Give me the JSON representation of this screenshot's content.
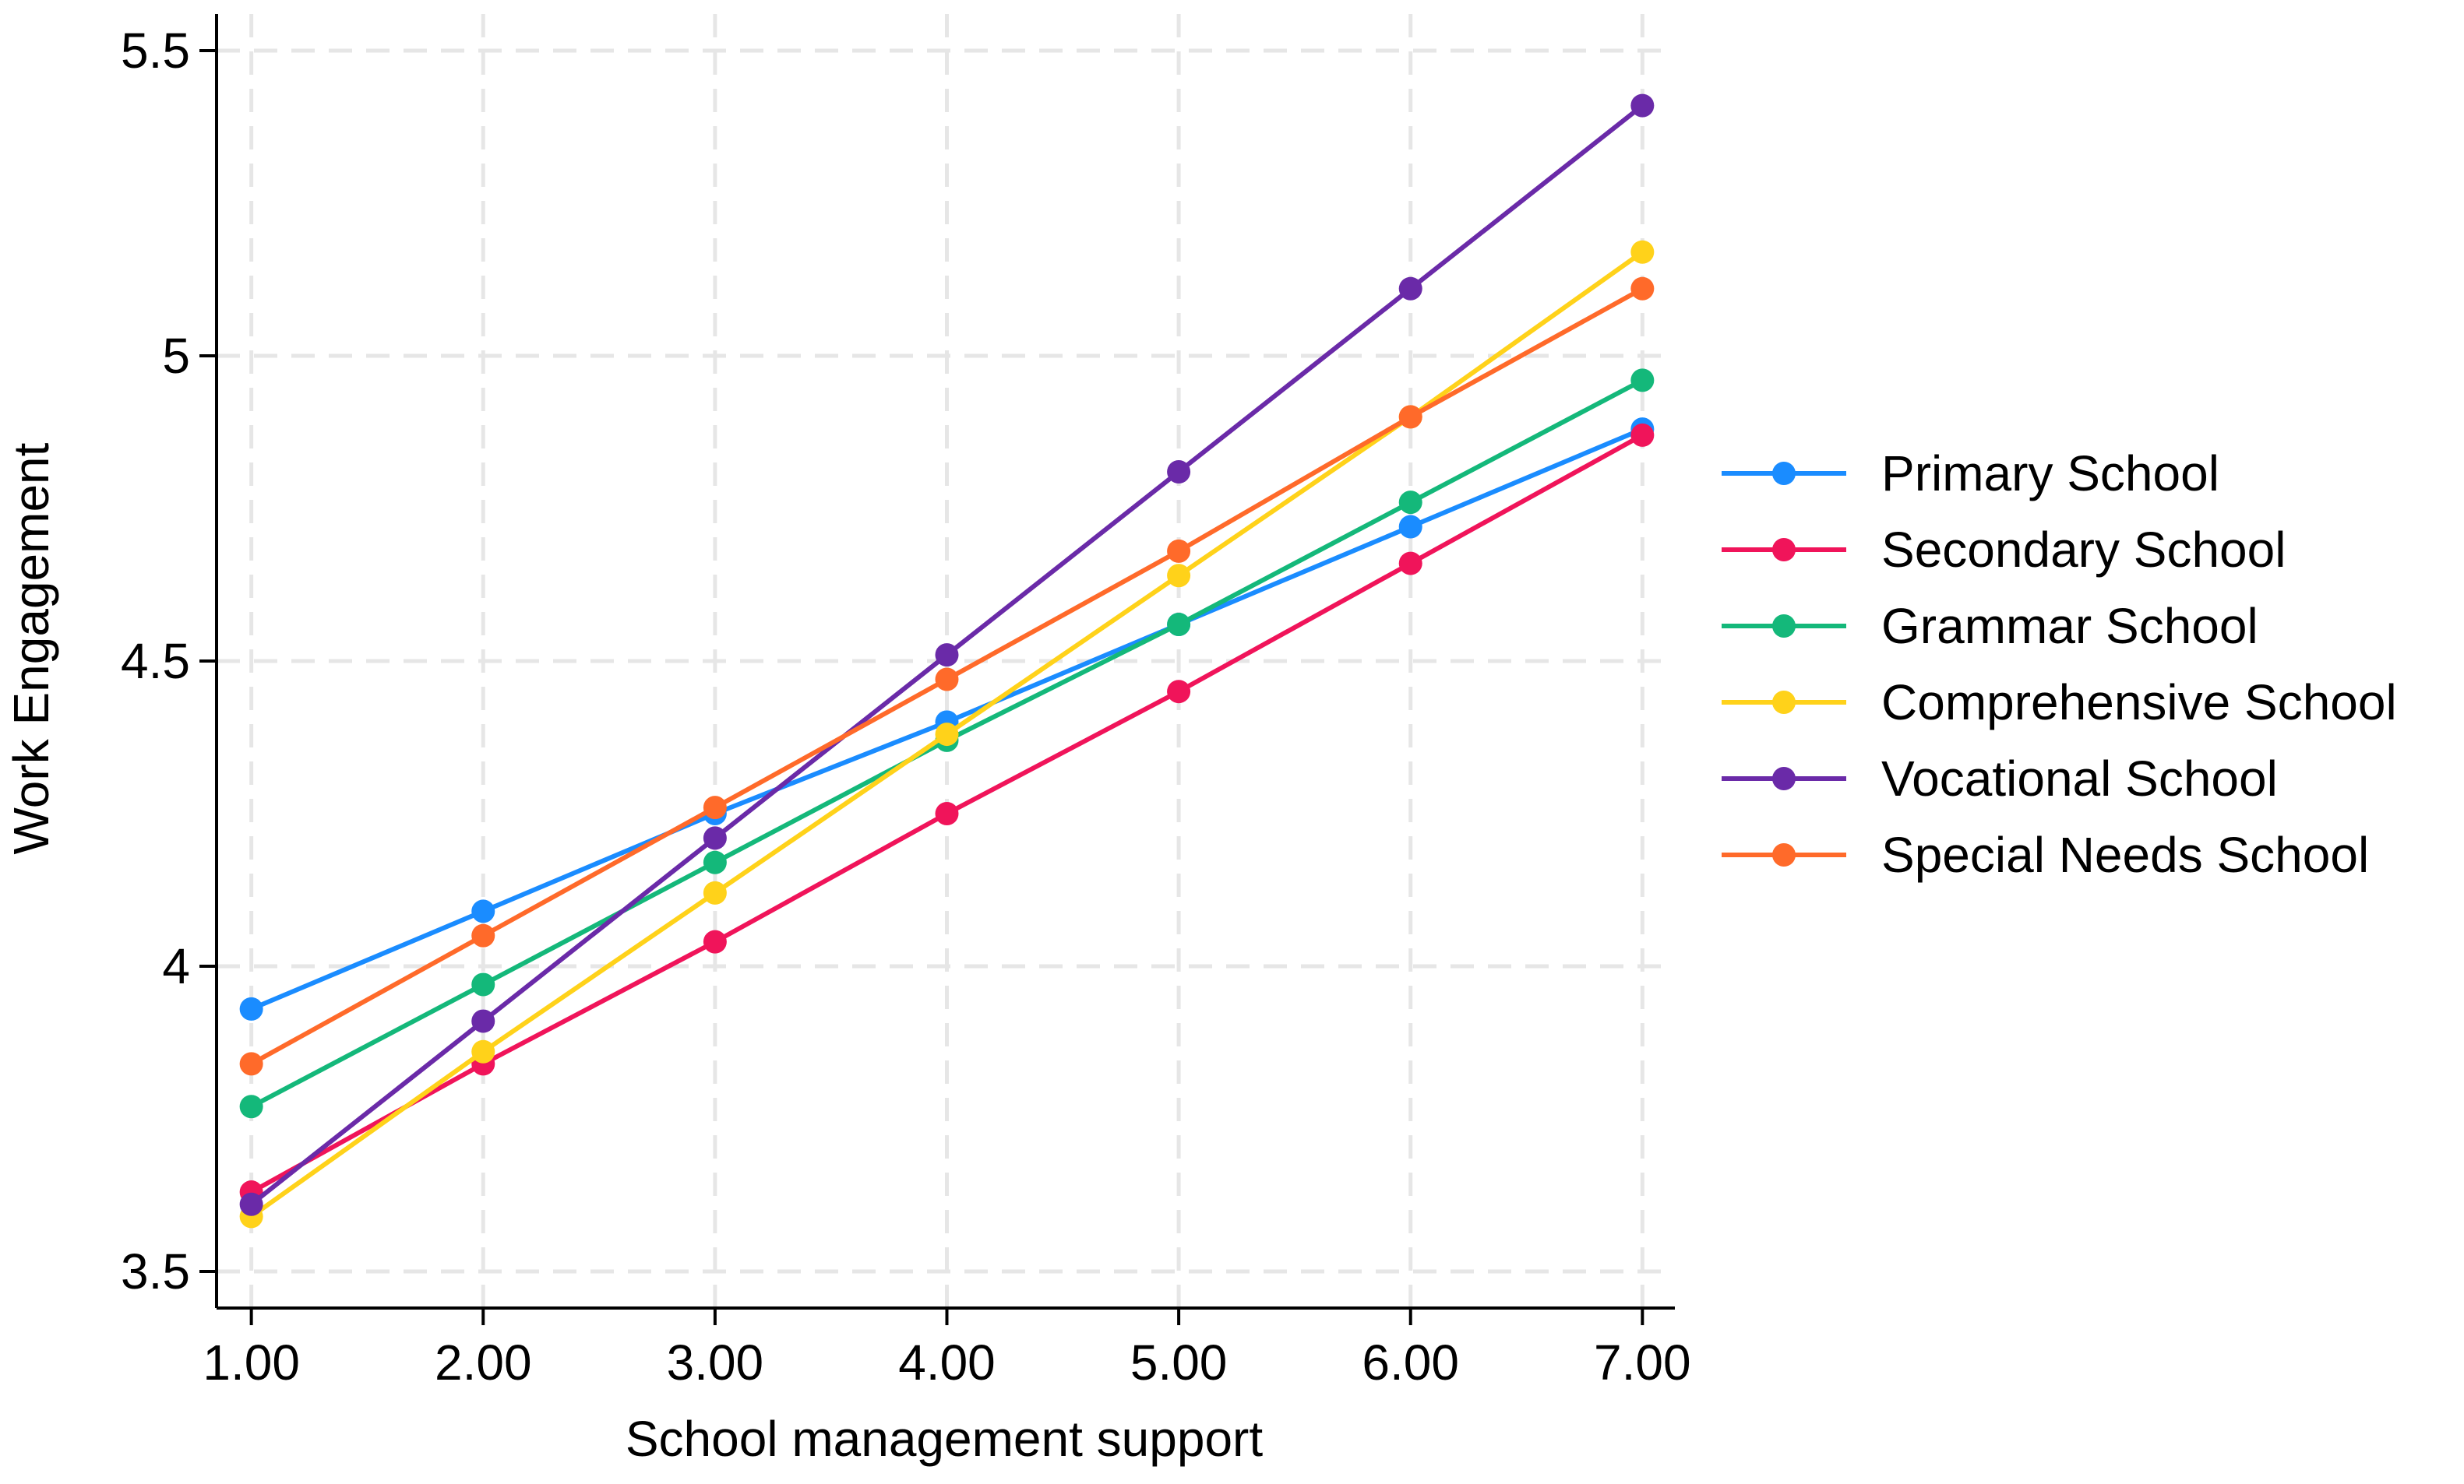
{
  "chart_data": {
    "type": "line",
    "title": "",
    "xlabel": "School management support",
    "ylabel": "Work Engagement",
    "x": [
      1,
      2,
      3,
      4,
      5,
      6,
      7
    ],
    "x_tick_labels": [
      "1.00",
      "2.00",
      "3.00",
      "4.00",
      "5.00",
      "6.00",
      "7.00"
    ],
    "y_ticks": [
      3.5,
      4,
      4.5,
      5,
      5.5
    ],
    "y_tick_labels": [
      "3.5",
      "4",
      "4.5",
      "5",
      "5.5"
    ],
    "xlim": [
      0.85,
      7.14
    ],
    "ylim": [
      3.44,
      5.56
    ],
    "grid": true,
    "legend_position": "right",
    "series": [
      {
        "name": "Primary School",
        "color": "#1a8cff",
        "values": [
          3.93,
          4.09,
          4.25,
          4.4,
          4.56,
          4.72,
          4.88
        ]
      },
      {
        "name": "Secondary School",
        "color": "#f0145a",
        "values": [
          3.63,
          3.84,
          4.04,
          4.25,
          4.45,
          4.66,
          4.87
        ]
      },
      {
        "name": "Grammar School",
        "color": "#14b87a",
        "values": [
          3.77,
          3.97,
          4.17,
          4.37,
          4.56,
          4.76,
          4.96
        ]
      },
      {
        "name": "Comprehensive School",
        "color": "#ffd21a",
        "values": [
          3.59,
          3.86,
          4.12,
          4.38,
          4.64,
          4.9,
          5.17
        ]
      },
      {
        "name": "Vocational School",
        "color": "#6a2aa8",
        "values": [
          3.61,
          3.91,
          4.21,
          4.51,
          4.81,
          5.11,
          5.41
        ]
      },
      {
        "name": "Special Needs School",
        "color": "#ff6a2a",
        "values": [
          3.84,
          4.05,
          4.26,
          4.47,
          4.68,
          4.9,
          5.11
        ]
      }
    ]
  }
}
